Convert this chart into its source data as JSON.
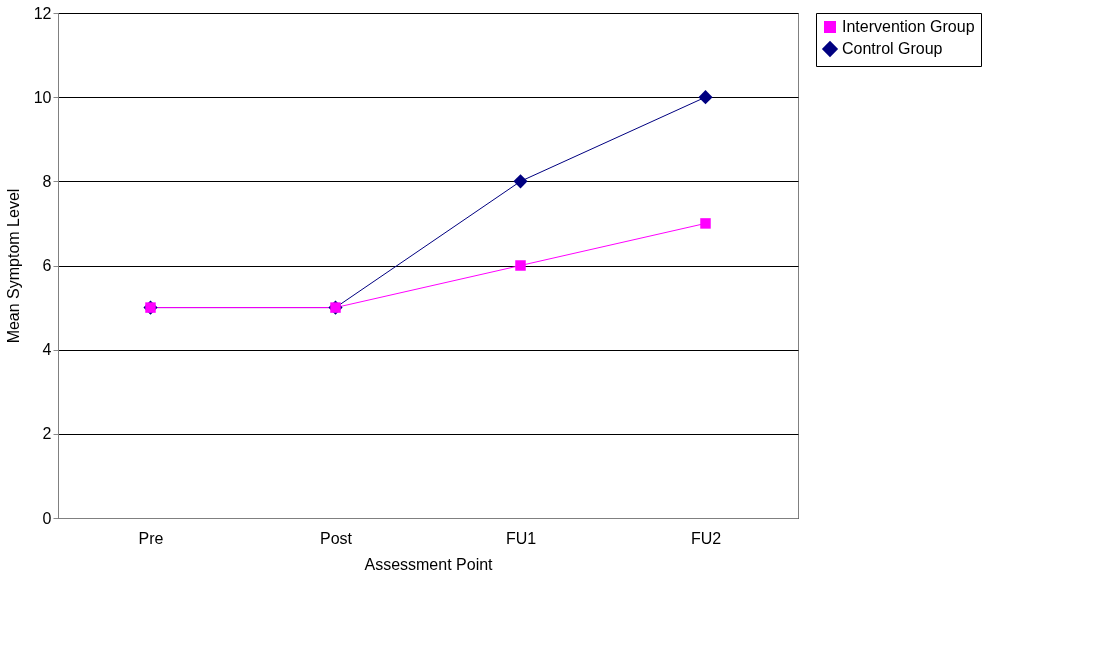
{
  "chart_data": {
    "type": "line",
    "xlabel": "Assessment Point",
    "ylabel": "Mean Symptom Level",
    "categories": [
      "Pre",
      "Post",
      "FU1",
      "FU2"
    ],
    "series": [
      {
        "name": "Intervention Group",
        "color": "#ff00ff",
        "marker": "square",
        "values": [
          5,
          5,
          6,
          7
        ]
      },
      {
        "name": "Control Group",
        "color": "#000080",
        "marker": "diamond",
        "values": [
          5,
          5,
          8,
          10
        ]
      }
    ],
    "ylim": [
      0,
      12
    ],
    "yticks": [
      0,
      2,
      4,
      6,
      8,
      10,
      12
    ],
    "grid": "y",
    "legend": "right",
    "line_style": "solid"
  }
}
